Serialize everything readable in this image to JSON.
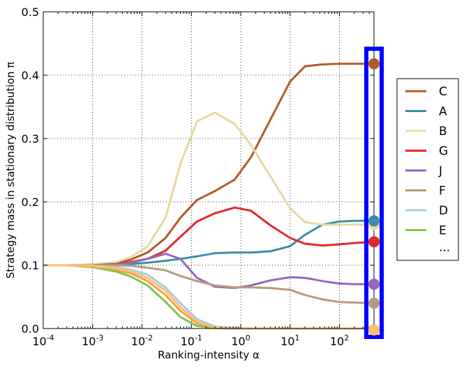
{
  "chart_data": {
    "type": "line",
    "xscale": "log",
    "x": [
      0.0001,
      0.0003,
      0.001,
      0.003,
      0.006,
      0.013,
      0.03,
      0.06,
      0.13,
      0.3,
      0.75,
      1.6,
      4,
      10,
      20,
      45,
      100,
      200,
      500
    ],
    "xlim": [
      0.0001,
      500
    ],
    "ylim": [
      0,
      0.5
    ],
    "xlabel": "Ranking-intensity α",
    "ylabel": "Strategy mass in stationary distribution π",
    "x_ticks": [
      {
        "value": 0.0001,
        "base": "10",
        "exp": "-4"
      },
      {
        "value": 0.001,
        "base": "10",
        "exp": "-3"
      },
      {
        "value": 0.01,
        "base": "10",
        "exp": "-2"
      },
      {
        "value": 0.1,
        "base": "10",
        "exp": "-1"
      },
      {
        "value": 1,
        "base": "10",
        "exp": "0"
      },
      {
        "value": 10,
        "base": "10",
        "exp": "1"
      },
      {
        "value": 100,
        "base": "10",
        "exp": "2"
      }
    ],
    "y_ticks": [
      "0.0",
      "0.1",
      "0.2",
      "0.3",
      "0.4",
      "0.5"
    ],
    "grid": true,
    "legend_position": "right",
    "legend_extra": "...",
    "highlight_color": "#0000ff",
    "series": [
      {
        "name": "C",
        "color": "#b35a2a",
        "values": [
          0.1,
          0.1,
          0.101,
          0.103,
          0.109,
          0.12,
          0.143,
          0.175,
          0.203,
          0.217,
          0.235,
          0.27,
          0.33,
          0.39,
          0.414,
          0.417,
          0.418,
          0.418,
          0.418
        ]
      },
      {
        "name": "A",
        "color": "#3a8eaa",
        "values": [
          0.1,
          0.1,
          0.1,
          0.101,
          0.102,
          0.104,
          0.107,
          0.11,
          0.114,
          0.119,
          0.12,
          0.12,
          0.122,
          0.13,
          0.148,
          0.164,
          0.169,
          0.17,
          0.17
        ]
      },
      {
        "name": "B",
        "color": "#e8d8a0",
        "values": [
          0.1,
          0.1,
          0.101,
          0.105,
          0.113,
          0.13,
          0.175,
          0.26,
          0.327,
          0.341,
          0.323,
          0.29,
          0.24,
          0.19,
          0.168,
          0.164,
          0.164,
          0.164,
          0.164
        ]
      },
      {
        "name": "G",
        "color": "#e02a2a",
        "values": [
          0.1,
          0.1,
          0.1,
          0.102,
          0.105,
          0.11,
          0.123,
          0.145,
          0.169,
          0.182,
          0.191,
          0.186,
          0.163,
          0.143,
          0.134,
          0.131,
          0.133,
          0.135,
          0.137
        ]
      },
      {
        "name": "J",
        "color": "#9467bd",
        "values": [
          0.1,
          0.1,
          0.1,
          0.101,
          0.104,
          0.11,
          0.118,
          0.11,
          0.08,
          0.066,
          0.064,
          0.068,
          0.076,
          0.081,
          0.08,
          0.075,
          0.071,
          0.07,
          0.07
        ]
      },
      {
        "name": "F",
        "color": "#b59b7c",
        "values": [
          0.1,
          0.1,
          0.1,
          0.1,
          0.099,
          0.096,
          0.092,
          0.083,
          0.075,
          0.068,
          0.065,
          0.065,
          0.064,
          0.061,
          0.053,
          0.046,
          0.042,
          0.041,
          0.04
        ]
      },
      {
        "name": "D",
        "color": "#a6cee3",
        "values": [
          0.1,
          0.1,
          0.099,
          0.097,
          0.093,
          0.085,
          0.065,
          0.04,
          0.015,
          0.003,
          0.001,
          0,
          0,
          0,
          0,
          0,
          0,
          0,
          0
        ]
      },
      {
        "name": "E",
        "color": "#7fc44e",
        "values": [
          0.1,
          0.1,
          0.097,
          0.09,
          0.082,
          0.068,
          0.042,
          0.018,
          0.004,
          0.001,
          0,
          0,
          0,
          0,
          0,
          0,
          0,
          0,
          0
        ]
      },
      {
        "color": "#f5a142",
        "values": [
          0.1,
          0.1,
          0.098,
          0.093,
          0.087,
          0.075,
          0.053,
          0.028,
          0.008,
          0.001,
          0,
          0,
          0,
          0,
          0,
          0,
          0,
          0,
          0
        ]
      },
      {
        "color": "#fdbf6f",
        "values": [
          0.1,
          0.1,
          0.099,
          0.095,
          0.09,
          0.08,
          0.06,
          0.034,
          0.011,
          0.002,
          0,
          0,
          0,
          0,
          0,
          0,
          0,
          0,
          0
        ]
      }
    ]
  }
}
